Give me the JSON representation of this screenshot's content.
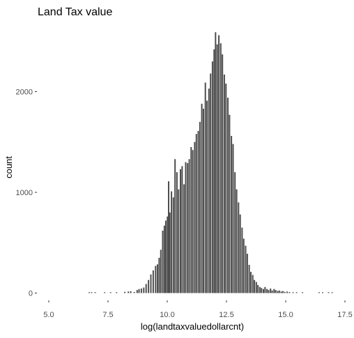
{
  "chart_data": {
    "type": "bar",
    "title": "Land Tax value",
    "xlabel": "log(landtaxvaluedollarcnt)",
    "ylabel": "count",
    "xlim": [
      4.5,
      17.5
    ],
    "ylim": [
      0,
      2700
    ],
    "xticks": [
      5,
      7.5,
      10,
      12.5,
      15,
      17.5
    ],
    "xtick_labels": [
      "5.0",
      "7.5",
      "10.0",
      "12.5",
      "15.0",
      "17.5"
    ],
    "yticks": [
      0,
      1000,
      2000
    ],
    "ytick_labels": [
      "0",
      "1000",
      "2000"
    ],
    "grid": false,
    "bin_width": 0.0411,
    "bar_color": "#4d4d4d",
    "bins": [
      {
        "x": 6.7,
        "y": 8
      },
      {
        "x": 6.8,
        "y": 6
      },
      {
        "x": 6.95,
        "y": 5
      },
      {
        "x": 7.35,
        "y": 4
      },
      {
        "x": 7.6,
        "y": 5
      },
      {
        "x": 7.85,
        "y": 8
      },
      {
        "x": 8.2,
        "y": 12
      },
      {
        "x": 8.35,
        "y": 15
      },
      {
        "x": 8.45,
        "y": 18
      },
      {
        "x": 8.6,
        "y": 10
      },
      {
        "x": 8.72,
        "y": 30
      },
      {
        "x": 8.8,
        "y": 40
      },
      {
        "x": 8.9,
        "y": 45
      },
      {
        "x": 9.0,
        "y": 55
      },
      {
        "x": 9.1,
        "y": 90
      },
      {
        "x": 9.2,
        "y": 130
      },
      {
        "x": 9.3,
        "y": 185
      },
      {
        "x": 9.4,
        "y": 225
      },
      {
        "x": 9.5,
        "y": 270
      },
      {
        "x": 9.58,
        "y": 285
      },
      {
        "x": 9.65,
        "y": 350
      },
      {
        "x": 9.72,
        "y": 430
      },
      {
        "x": 9.8,
        "y": 620
      },
      {
        "x": 9.87,
        "y": 670
      },
      {
        "x": 9.93,
        "y": 720
      },
      {
        "x": 10.0,
        "y": 760
      },
      {
        "x": 10.05,
        "y": 1110
      },
      {
        "x": 10.1,
        "y": 800
      },
      {
        "x": 10.17,
        "y": 1010
      },
      {
        "x": 10.25,
        "y": 950
      },
      {
        "x": 10.32,
        "y": 1330
      },
      {
        "x": 10.4,
        "y": 1200
      },
      {
        "x": 10.47,
        "y": 1030
      },
      {
        "x": 10.55,
        "y": 1230
      },
      {
        "x": 10.62,
        "y": 1260
      },
      {
        "x": 10.7,
        "y": 1080
      },
      {
        "x": 10.77,
        "y": 1300
      },
      {
        "x": 10.85,
        "y": 1290
      },
      {
        "x": 10.92,
        "y": 1330
      },
      {
        "x": 11.0,
        "y": 1450
      },
      {
        "x": 11.07,
        "y": 1420
      },
      {
        "x": 11.15,
        "y": 1500
      },
      {
        "x": 11.22,
        "y": 1580
      },
      {
        "x": 11.3,
        "y": 1610
      },
      {
        "x": 11.37,
        "y": 1700
      },
      {
        "x": 11.45,
        "y": 1880
      },
      {
        "x": 11.52,
        "y": 1830
      },
      {
        "x": 11.6,
        "y": 2090
      },
      {
        "x": 11.67,
        "y": 1910
      },
      {
        "x": 11.75,
        "y": 2030
      },
      {
        "x": 11.82,
        "y": 2180
      },
      {
        "x": 11.9,
        "y": 2300
      },
      {
        "x": 11.97,
        "y": 2420
      },
      {
        "x": 12.03,
        "y": 2590
      },
      {
        "x": 12.1,
        "y": 2470
      },
      {
        "x": 12.17,
        "y": 2560
      },
      {
        "x": 12.25,
        "y": 2480
      },
      {
        "x": 12.32,
        "y": 2370
      },
      {
        "x": 12.4,
        "y": 2170
      },
      {
        "x": 12.47,
        "y": 2080
      },
      {
        "x": 12.55,
        "y": 1940
      },
      {
        "x": 12.62,
        "y": 1770
      },
      {
        "x": 12.7,
        "y": 1560
      },
      {
        "x": 12.77,
        "y": 1480
      },
      {
        "x": 12.85,
        "y": 1200
      },
      {
        "x": 12.92,
        "y": 1030
      },
      {
        "x": 13.0,
        "y": 900
      },
      {
        "x": 13.07,
        "y": 780
      },
      {
        "x": 13.15,
        "y": 650
      },
      {
        "x": 13.22,
        "y": 540
      },
      {
        "x": 13.3,
        "y": 470
      },
      {
        "x": 13.37,
        "y": 390
      },
      {
        "x": 13.45,
        "y": 280
      },
      {
        "x": 13.52,
        "y": 210
      },
      {
        "x": 13.6,
        "y": 180
      },
      {
        "x": 13.67,
        "y": 130
      },
      {
        "x": 13.75,
        "y": 110
      },
      {
        "x": 13.82,
        "y": 80
      },
      {
        "x": 13.9,
        "y": 60
      },
      {
        "x": 13.97,
        "y": 50
      },
      {
        "x": 14.05,
        "y": 40
      },
      {
        "x": 14.12,
        "y": 60
      },
      {
        "x": 14.2,
        "y": 40
      },
      {
        "x": 14.27,
        "y": 30
      },
      {
        "x": 14.35,
        "y": 45
      },
      {
        "x": 14.42,
        "y": 25
      },
      {
        "x": 14.5,
        "y": 40
      },
      {
        "x": 14.57,
        "y": 30
      },
      {
        "x": 14.65,
        "y": 20
      },
      {
        "x": 14.72,
        "y": 25
      },
      {
        "x": 14.8,
        "y": 15
      },
      {
        "x": 14.87,
        "y": 20
      },
      {
        "x": 14.95,
        "y": 12
      },
      {
        "x": 15.05,
        "y": 15
      },
      {
        "x": 15.15,
        "y": 10
      },
      {
        "x": 15.3,
        "y": 8
      },
      {
        "x": 15.45,
        "y": 7
      },
      {
        "x": 15.7,
        "y": 5
      },
      {
        "x": 16.4,
        "y": 4
      },
      {
        "x": 16.55,
        "y": 4
      },
      {
        "x": 16.8,
        "y": 4
      },
      {
        "x": 16.95,
        "y": 4
      }
    ]
  }
}
